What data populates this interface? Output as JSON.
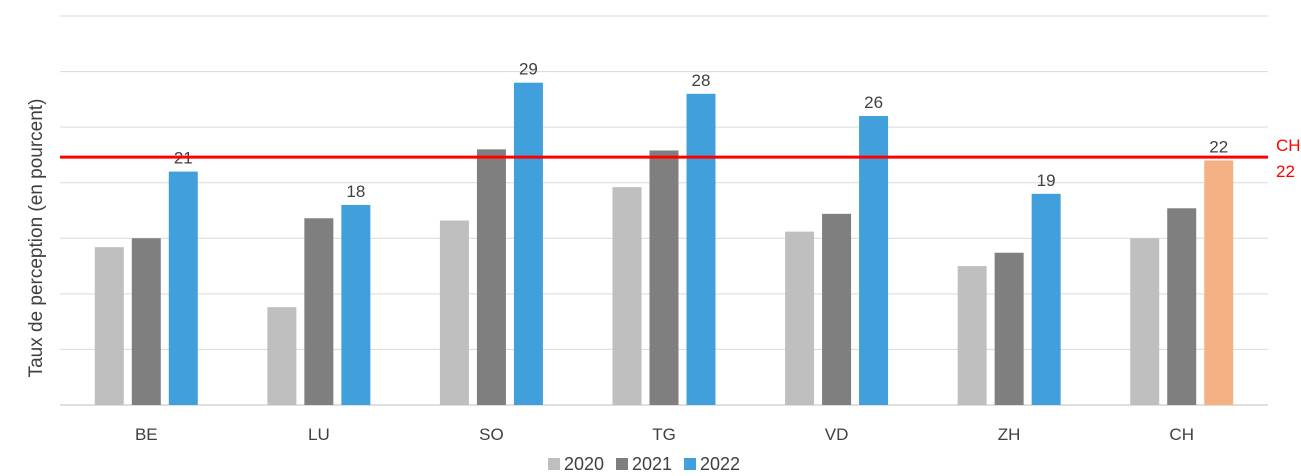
{
  "chart_data": {
    "type": "bar",
    "title": "",
    "xlabel": "",
    "ylabel": "Taux de perception (en pourcent)",
    "ylim": [
      0,
      35
    ],
    "grid": true,
    "legend_position": "bottom",
    "categories": [
      "BE",
      "LU",
      "SO",
      "TG",
      "VD",
      "ZH",
      "CH"
    ],
    "series": [
      {
        "name": "2020",
        "color": "#bfbfbf",
        "values": [
          14.2,
          8.8,
          16.6,
          19.6,
          15.6,
          12.5,
          15.0
        ]
      },
      {
        "name": "2021",
        "color": "#7f7f7f",
        "values": [
          15.0,
          16.8,
          23.0,
          22.9,
          17.2,
          13.7,
          17.7
        ]
      },
      {
        "name": "2022",
        "color": "#41a0dc",
        "values": [
          21,
          18,
          29,
          28,
          26,
          19,
          22
        ],
        "labels": [
          "21",
          "18",
          "29",
          "28",
          "26",
          "19",
          "22"
        ]
      }
    ],
    "highlight": {
      "category": "CH",
      "series": "2022",
      "color": "#f4b183"
    },
    "reference_line": {
      "value": 22.3,
      "color": "#ff0000",
      "label_line1": "CH",
      "label_line2": "22"
    }
  }
}
